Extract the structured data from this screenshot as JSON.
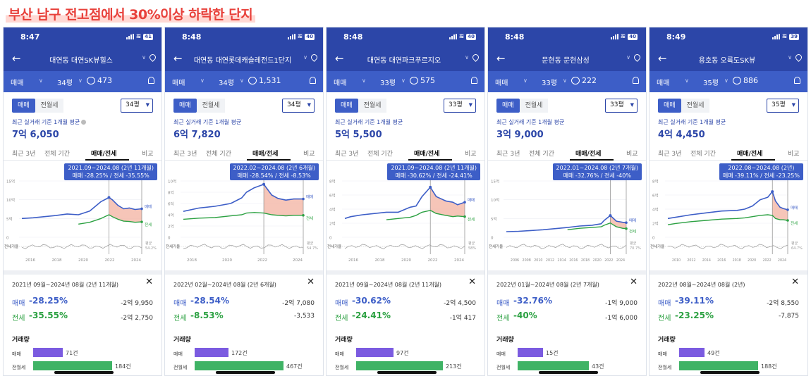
{
  "title": "부산 남구 전고점에서 30%이상 하락한 단지",
  "colors": {
    "header": "#2c46a8",
    "filter": "#3d5ec7",
    "sale": "#3d5ec7",
    "jeonse": "#2ca142",
    "gap_fill": "#f4b7a6",
    "title": "#e8413b"
  },
  "common": {
    "seg_sale": "매매",
    "seg_rent": "전월세",
    "avg_label": "최근 실거래 기준 1개월 평균",
    "filter_type": "매매",
    "tabs": [
      "최근 3년",
      "전체 기간",
      "매매/전세",
      "비교"
    ],
    "row_sale": "매매",
    "row_jeonse": "전세",
    "volume_title": "거래량",
    "vol_sale_label": "매매",
    "vol_rent_label": "전월세",
    "legend_sale": "매매",
    "legend_jeonse": "전세",
    "rate_label": "전세가율",
    "avg_tag": "평균"
  },
  "phones": [
    {
      "time": "8:47",
      "battery": "41",
      "apt": "대연동 대연SK뷰힐스",
      "size": "34평",
      "comments": "473",
      "avg_price": "7억 6,050",
      "tooltip_range": "2021.09~2024.08 (2년 11개월)",
      "tooltip_values": "매매 -28.25% / 전세 -35.55%",
      "period": "2021년 09월~2024년 08월 (2년 11개월)",
      "sale_pct": "-28.25%",
      "sale_amt": "-2억 9,950",
      "jeonse_pct": "-35.55%",
      "jeonse_amt": "-2억 2,750",
      "vol_sale": "71건",
      "vol_rent": "184건",
      "vol_sale_frac": 0.3,
      "vol_rent_frac": 0.8,
      "rate_avg": "54.2%",
      "y_ticks": [
        "15억",
        "10억",
        "5억",
        "0"
      ],
      "x_ticks": [
        "2016",
        "2018",
        "2020",
        "2022",
        "2024"
      ],
      "chart_data": {
        "type": "line",
        "x": [
          2014,
          2015,
          2016,
          2017,
          2018,
          2019,
          2020,
          2021,
          2021.7,
          2022,
          2022.5,
          2023,
          2023.5,
          2024,
          2024.6
        ],
        "ylim": [
          0,
          15
        ],
        "series": [
          {
            "name": "매매",
            "values": [
              5.0,
              5.2,
              5.5,
              5.8,
              6.2,
              6.0,
              7.0,
              9.5,
              10.6,
              10.0,
              8.5,
              7.6,
              7.8,
              7.4,
              7.6
            ]
          },
          {
            "name": "전세",
            "values": [
              null,
              null,
              null,
              null,
              null,
              3.5,
              4.0,
              5.0,
              6.0,
              5.5,
              4.8,
              4.3,
              4.2,
              4.0,
              4.1
            ]
          }
        ],
        "highlight": [
          2021.7,
          2024.6
        ]
      }
    },
    {
      "time": "8:48",
      "battery": "40",
      "apt": "대연동 대연롯데캐슬레전드1단지",
      "size": "34평",
      "comments": "1,531",
      "avg_price": "6억 7,820",
      "tooltip_range": "2022.02~2024.08 (2년 6개월)",
      "tooltip_values": "매매 -28.54% / 전세 -8.53%",
      "period": "2022년 02월~2024년 08월 (2년 6개월)",
      "sale_pct": "-28.54%",
      "sale_amt": "-2억 7,080",
      "jeonse_pct": "-8.53%",
      "jeonse_amt": "-3,533",
      "vol_sale": "172건",
      "vol_rent": "467건",
      "vol_sale_frac": 0.34,
      "vol_rent_frac": 0.9,
      "rate_avg": "54.7%",
      "y_ticks": [
        "10억",
        "8억",
        "6억",
        "4억",
        "2억",
        "0"
      ],
      "x_ticks": [
        "2018",
        "2020",
        "2022",
        "2024"
      ],
      "chart_data": {
        "type": "line",
        "x": [
          2017,
          2018,
          2019,
          2020,
          2020.7,
          2021,
          2021.5,
          2022.1,
          2022.6,
          2023,
          2023.5,
          2024,
          2024.6
        ],
        "ylim": [
          0,
          10
        ],
        "series": [
          {
            "name": "매매",
            "values": [
              4.6,
              5.2,
              5.5,
              6.0,
              7.0,
              8.0,
              8.8,
              9.4,
              7.5,
              6.9,
              6.6,
              6.8,
              6.8
            ]
          },
          {
            "name": "전세",
            "values": [
              3.2,
              3.4,
              3.5,
              3.8,
              4.0,
              4.3,
              4.4,
              4.3,
              4.0,
              3.9,
              3.8,
              3.9,
              3.9
            ]
          }
        ],
        "highlight": [
          2022.1,
          2024.6
        ]
      }
    },
    {
      "time": "8:48",
      "battery": "40",
      "apt": "대연동 대연파크푸르지오",
      "size": "33평",
      "comments": "575",
      "avg_price": "5억 5,500",
      "tooltip_range": "2021.09~2024.08 (2년 11개월)",
      "tooltip_values": "매매 -30.62% / 전세 -24.41%",
      "period": "2021년 09월~2024년 08월 (2년 11개월)",
      "sale_pct": "-30.62%",
      "sale_amt": "-2억 4,500",
      "jeonse_pct": "-24.41%",
      "jeonse_amt": "-1억 417",
      "vol_sale": "97건",
      "vol_rent": "213건",
      "vol_sale_frac": 0.38,
      "vol_rent_frac": 0.88,
      "rate_avg": "58%",
      "y_ticks": [
        "8억",
        "6억",
        "4억",
        "2억",
        "0"
      ],
      "x_ticks": [
        "2016",
        "2018",
        "2020",
        "2022",
        "2024"
      ],
      "chart_data": {
        "type": "line",
        "x": [
          2014.5,
          2015,
          2016,
          2017,
          2018,
          2019,
          2020,
          2020.5,
          2021,
          2021.7,
          2022.2,
          2023,
          2023.6,
          2024,
          2024.6
        ],
        "ylim": [
          0,
          9
        ],
        "series": [
          {
            "name": "매매",
            "values": [
              3.0,
              3.3,
              3.6,
              3.8,
              4.0,
              4.0,
              4.8,
              5.0,
              6.5,
              8.0,
              6.5,
              5.8,
              5.6,
              5.2,
              5.6
            ]
          },
          {
            "name": "전세",
            "values": [
              null,
              null,
              null,
              null,
              2.8,
              3.0,
              3.2,
              3.5,
              4.0,
              4.3,
              3.8,
              3.5,
              3.3,
              3.4,
              3.3
            ]
          }
        ],
        "highlight": [
          2021.7,
          2024.6
        ]
      }
    },
    {
      "time": "8:48",
      "battery": "40",
      "apt": "문현동 문현삼성",
      "size": "33평",
      "comments": "222",
      "avg_price": "3억 9,000",
      "tooltip_range": "2022.01~2024.08 (2년 7개월)",
      "tooltip_values": "매매 -32.76% / 전세 -40%",
      "period": "2022년 01월~2024년 08월 (2년 7개월)",
      "sale_pct": "-32.76%",
      "sale_amt": "-1억 9,000",
      "jeonse_pct": "-40%",
      "jeonse_amt": "-1억 6,000",
      "vol_sale": "15건",
      "vol_rent": "43건",
      "vol_sale_frac": 0.26,
      "vol_rent_frac": 0.72,
      "rate_avg": "70.7%",
      "y_ticks": [
        "15억",
        "10억",
        "5억",
        "0"
      ],
      "x_ticks": [
        "2006",
        "2008",
        "2010",
        "2012",
        "2014",
        "2016",
        "2018",
        "2020",
        "2022",
        "2024"
      ],
      "chart_data": {
        "type": "line",
        "x": [
          2005,
          2007,
          2009,
          2011,
          2013,
          2015,
          2017,
          2019,
          2020.5,
          2021,
          2022,
          2023,
          2024,
          2024.6
        ],
        "ylim": [
          0,
          15
        ],
        "series": [
          {
            "name": "매매",
            "values": [
              1.5,
              1.6,
              1.8,
              2.0,
              2.3,
              2.6,
              3.0,
              3.2,
              3.6,
              4.5,
              5.8,
              4.3,
              4.0,
              3.9
            ]
          },
          {
            "name": "전세",
            "values": [
              null,
              null,
              null,
              null,
              null,
              2.0,
              2.4,
              2.6,
              2.8,
              3.2,
              3.8,
              2.8,
              2.4,
              2.3
            ]
          }
        ],
        "highlight": [
          2022,
          2024.6
        ]
      }
    },
    {
      "time": "8:49",
      "battery": "39",
      "apt": "용호동 오륙도SK뷰",
      "size": "35평",
      "comments": "886",
      "avg_price": "4억 4,450",
      "tooltip_range": "2022.08~2024.08 (2년)",
      "tooltip_values": "매매 -39.11% / 전세 -23.25%",
      "period": "2022년 08월~2024년 08월 (2년)",
      "sale_pct": "-39.11%",
      "sale_amt": "-2억 8,550",
      "jeonse_pct": "-23.25%",
      "jeonse_amt": "-7,875",
      "vol_sale": "49건",
      "vol_rent": "188건",
      "vol_sale_frac": 0.26,
      "vol_rent_frac": 0.8,
      "rate_avg": "64.7%",
      "y_ticks": [
        "8억",
        "6억",
        "4억",
        "2억",
        "0"
      ],
      "x_ticks": [
        "2010",
        "2012",
        "2014",
        "2016",
        "2018",
        "2020",
        "2022",
        "2024"
      ],
      "chart_data": {
        "type": "line",
        "x": [
          2009,
          2010,
          2012,
          2014,
          2016,
          2018,
          2019,
          2020,
          2021,
          2022,
          2022.6,
          2023,
          2023.6,
          2024,
          2024.6
        ],
        "ylim": [
          0,
          9
        ],
        "series": [
          {
            "name": "매매",
            "values": [
              3.0,
              3.2,
              3.6,
              3.9,
              4.2,
              4.3,
              4.5,
              5.0,
              6.0,
              6.4,
              7.3,
              5.8,
              4.8,
              4.6,
              4.4
            ]
          },
          {
            "name": "전세",
            "values": [
              2.0,
              2.2,
              2.5,
              2.7,
              2.9,
              3.0,
              3.1,
              3.3,
              3.5,
              3.6,
              3.5,
              3.0,
              2.8,
              2.8,
              2.7
            ]
          }
        ],
        "highlight": [
          2022.6,
          2024.6
        ]
      }
    }
  ]
}
